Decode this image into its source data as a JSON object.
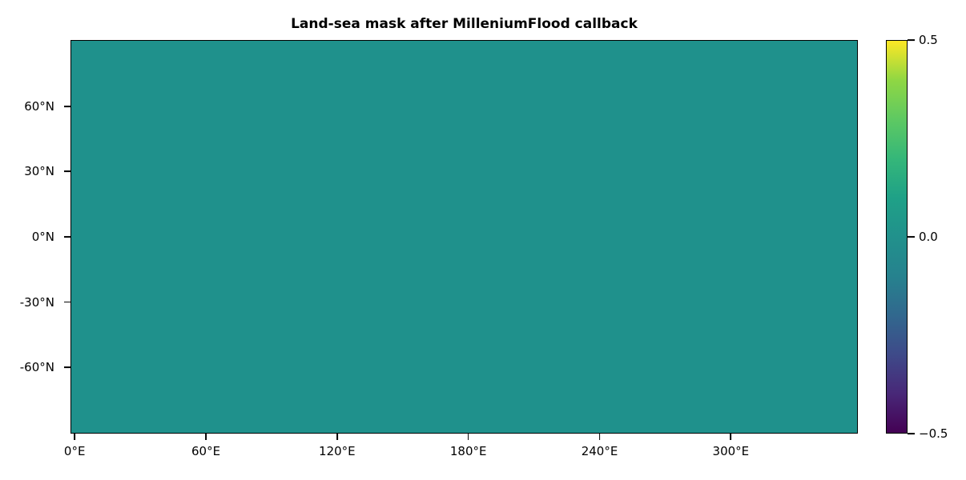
{
  "chart_data": {
    "type": "heatmap",
    "title": "Land-sea mask after MilleniumFlood callback",
    "uniform_value": 0.0,
    "value_color": "#1f918c",
    "colormap": "viridis",
    "clim": [
      -0.5,
      0.5
    ],
    "grid": false,
    "x_axis": {
      "min": -1.9,
      "max": 358.1,
      "ticks": [
        {
          "value": 0,
          "label": "0°E"
        },
        {
          "value": 60,
          "label": "60°E"
        },
        {
          "value": 120,
          "label": "120°E"
        },
        {
          "value": 180,
          "label": "180°E"
        },
        {
          "value": 240,
          "label": "240°E"
        },
        {
          "value": 300,
          "label": "300°E"
        }
      ]
    },
    "y_axis": {
      "min": -90.4,
      "max": 90.4,
      "ticks": [
        {
          "value": 60,
          "label": "60°N"
        },
        {
          "value": 30,
          "label": "30°N"
        },
        {
          "value": 0,
          "label": "0°N"
        },
        {
          "value": -30,
          "label": "-30°N"
        },
        {
          "value": -60,
          "label": "-60°N"
        }
      ]
    },
    "colorbar": {
      "min": -0.5,
      "max": 0.5,
      "ticks": [
        {
          "value": 0.5,
          "label": "0.5"
        },
        {
          "value": 0.0,
          "label": "0.0"
        },
        {
          "value": -0.5,
          "label": "−0.5"
        }
      ],
      "gradient_stops": [
        {
          "pos": 0.0,
          "color": "#440154"
        },
        {
          "pos": 0.1,
          "color": "#482878"
        },
        {
          "pos": 0.2,
          "color": "#3e4a89"
        },
        {
          "pos": 0.3,
          "color": "#31688e"
        },
        {
          "pos": 0.4,
          "color": "#26828e"
        },
        {
          "pos": 0.5,
          "color": "#21918c"
        },
        {
          "pos": 0.6,
          "color": "#1fa187"
        },
        {
          "pos": 0.7,
          "color": "#35b779"
        },
        {
          "pos": 0.8,
          "color": "#5ec962"
        },
        {
          "pos": 0.9,
          "color": "#90d743"
        },
        {
          "pos": 1.0,
          "color": "#fde725"
        }
      ]
    }
  }
}
